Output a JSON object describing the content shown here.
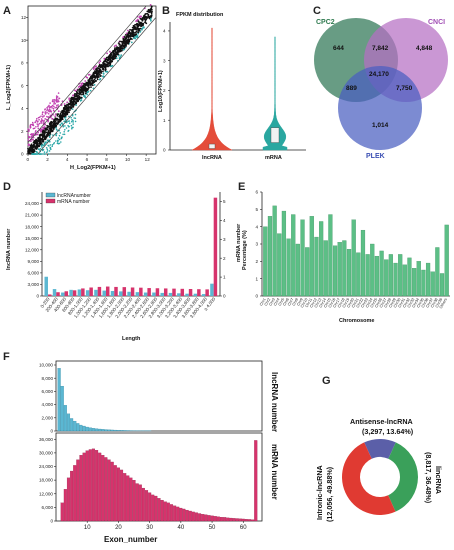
{
  "panels": {
    "A": "A",
    "B": "B",
    "C": "C",
    "D": "D",
    "E": "E",
    "F": "F",
    "G": "G"
  },
  "colors": {
    "scatter_main": "#111111",
    "scatter_up": "#c040b0",
    "scatter_down": "#2aa7a7",
    "lnc_violin": "#e44d3a",
    "mrna_violin": "#2aa7a0",
    "lnc_bar": "#5bb7d2",
    "mrna_bar": "#d6336c",
    "chrom_bar": "#5cbf86",
    "venn_cpc2": "#4e8b6e",
    "venn_cnci": "#b56fc4",
    "venn_plek": "#4a5ec0",
    "donut_antisense": "#5b5fa8",
    "donut_lincrna": "#3aa05a",
    "donut_intronic": "#e03a32"
  },
  "chart_data": [
    {
      "panel": "A",
      "type": "scatter",
      "title": "",
      "xlabel": "H_Log2(FPKM+1)",
      "ylabel": "L_Log2(FPKM+1)",
      "xticks": [
        "0",
        "2",
        "4",
        "6",
        "8",
        "10",
        "12"
      ],
      "yticks": [
        "0",
        "2",
        "4",
        "6",
        "8",
        "10",
        "12"
      ],
      "xlim": [
        0,
        13
      ],
      "ylim": [
        0,
        13
      ]
    },
    {
      "panel": "B",
      "type": "violin",
      "title": "FPKM distribution",
      "ylabel": "Log10(FPKM+1)",
      "categories": [
        "lncRNA",
        "mRNA"
      ],
      "yticks": [
        "0",
        "1",
        "2",
        "3",
        "4"
      ],
      "ylim": [
        0,
        4.3
      ]
    },
    {
      "panel": "C",
      "type": "venn",
      "sets": [
        "CPC2",
        "CNCI",
        "PLEK"
      ],
      "regions": {
        "CPC2_only": "644",
        "CNCI_only": "4,848",
        "PLEK_only": "1,014",
        "CPC2_CNCI": "7,842",
        "CPC2_PLEK": "889",
        "CNCI_PLEK": "7,750",
        "all": "24,170"
      }
    },
    {
      "panel": "D",
      "type": "bar",
      "xlabel": "Length",
      "ylabel_left": "lncRNA number",
      "ylabel_right": "mRNA number",
      "legend": [
        "lncRNAnumber",
        "mRNA number"
      ],
      "categories": [
        "0-200",
        "200-400",
        "400-600",
        "600-800",
        "800-1,000",
        "1,000-1,200",
        "1,200-1,400",
        "1,400-1,600",
        "1,600-1,800",
        "1,800-2,000",
        "2,000-2,200",
        "2,200-2,400",
        "2,400-2,600",
        "2,600-2,800",
        "2,800-3,000",
        "3,000-3,200",
        "3,200-3,400",
        "3,400-3,600",
        "3,600-3,800",
        "3,800-4,000",
        "≥ 4,000"
      ],
      "lnc_values": [
        5000,
        1800,
        900,
        1600,
        1700,
        1500,
        1600,
        1400,
        1300,
        1200,
        1100,
        1000,
        900,
        900,
        800,
        800,
        700,
        600,
        600,
        500,
        3200
      ],
      "mrna_values": [
        80,
        200,
        250,
        300,
        400,
        450,
        480,
        500,
        480,
        470,
        450,
        440,
        420,
        410,
        400,
        390,
        380,
        370,
        360,
        350,
        5200
      ],
      "ylim_left": [
        0,
        27000
      ],
      "ylim_right": [
        0,
        5500
      ],
      "yticks_left": [
        "0",
        "3,000",
        "6,000",
        "9,000",
        "12,000",
        "15,000",
        "18,000",
        "21,000",
        "24,000"
      ],
      "yticks_right": [
        "0",
        "1",
        "2",
        "3",
        "4",
        "5"
      ]
    },
    {
      "panel": "E",
      "type": "bar",
      "xlabel": "Chromosome",
      "ylabel": "Percentage (%)",
      "categories": [
        "Chr1",
        "Chr2",
        "Chr3",
        "Chr4",
        "Chr5",
        "Chr6",
        "Chr7",
        "Chr8",
        "Chr9",
        "Chr10",
        "Chr11",
        "Chr12",
        "Chr13",
        "Chr14",
        "Chr15",
        "Chr16",
        "Chr17",
        "Chr18",
        "Chr19",
        "Chr20",
        "Chr21",
        "Chr22",
        "Chr23",
        "Chr24",
        "Chr25",
        "Chr26",
        "Chr27",
        "Chr28",
        "Chr29",
        "Chr30",
        "Chr31",
        "Chr32",
        "Chr33",
        "Chr34",
        "Chr35",
        "Chr36",
        "Chr37",
        "Chr38",
        "Chr39",
        "Others"
      ],
      "values": [
        4.0,
        4.6,
        5.2,
        3.6,
        4.9,
        3.3,
        4.7,
        3.0,
        4.4,
        2.8,
        4.6,
        3.4,
        4.3,
        3.2,
        4.7,
        2.9,
        3.1,
        3.2,
        2.7,
        4.4,
        2.5,
        3.8,
        2.4,
        3.0,
        2.3,
        2.6,
        2.1,
        2.4,
        1.9,
        2.4,
        1.8,
        2.2,
        1.6,
        2.0,
        1.5,
        1.9,
        1.4,
        2.8,
        1.3,
        4.1
      ],
      "ylim": [
        0,
        6
      ],
      "yticks": [
        "0",
        "1",
        "2",
        "3",
        "4",
        "5",
        "6"
      ]
    },
    {
      "panel": "F-top",
      "type": "bar",
      "ylabel": "lncRNA number",
      "ylim": [
        0,
        10000
      ],
      "yticks": [
        "0",
        "2,000",
        "4,000",
        "6,000",
        "8,000",
        "10,000"
      ],
      "x": [
        1,
        2,
        3,
        4,
        5,
        6,
        7,
        8,
        9,
        10,
        11,
        12,
        13,
        14,
        15,
        16,
        17,
        18,
        19,
        20,
        21,
        22,
        23,
        24,
        25,
        26,
        27,
        28,
        29,
        30
      ],
      "values": [
        9500,
        6800,
        3900,
        2600,
        1900,
        1500,
        1150,
        900,
        750,
        600,
        500,
        420,
        360,
        300,
        260,
        220,
        190,
        160,
        140,
        120,
        100,
        90,
        80,
        70,
        60,
        50,
        45,
        40,
        35,
        30
      ]
    },
    {
      "panel": "F-bottom",
      "type": "bar",
      "xlabel": "Exon_number",
      "ylabel": "mRNA number",
      "ylim": [
        0,
        37000
      ],
      "yticks": [
        "0",
        "6,000",
        "12,000",
        "18,000",
        "24,000",
        "30,000",
        "36,000"
      ],
      "xticks": [
        "10",
        "20",
        "30",
        "40",
        "50",
        "60"
      ],
      "x": [
        2,
        3,
        4,
        5,
        6,
        7,
        8,
        9,
        10,
        11,
        12,
        13,
        14,
        15,
        16,
        17,
        18,
        19,
        20,
        21,
        22,
        23,
        24,
        25,
        26,
        27,
        28,
        29,
        30,
        31,
        32,
        33,
        34,
        35,
        36,
        37,
        38,
        39,
        40,
        41,
        42,
        43,
        44,
        45,
        46,
        47,
        48,
        49,
        50,
        51,
        52,
        53,
        54,
        55,
        56,
        57,
        58,
        59,
        60,
        61,
        62,
        63,
        64
      ],
      "values": [
        8000,
        14000,
        19000,
        22000,
        24500,
        27000,
        29000,
        30000,
        31000,
        31500,
        31800,
        31200,
        30000,
        29000,
        28000,
        27000,
        26000,
        24500,
        23500,
        22500,
        21000,
        20000,
        19000,
        18000,
        16500,
        16000,
        14500,
        13500,
        12500,
        11500,
        11000,
        10000,
        9200,
        8500,
        8000,
        7300,
        6700,
        6200,
        5700,
        5300,
        4800,
        4400,
        4000,
        3700,
        3300,
        3000,
        2800,
        2500,
        2300,
        2100,
        1900,
        1700,
        1600,
        1400,
        1300,
        1200,
        1100,
        1000,
        900,
        800,
        700,
        600,
        35500
      ],
      "xlim": [
        0,
        66
      ]
    },
    {
      "panel": "G",
      "type": "pie",
      "labels": [
        "Antisense-lncRNA",
        "lincRNA",
        "Intronic-lncRNA"
      ],
      "label_lines": [
        [
          "Antisense-lncRNA",
          "(3,297, 13.64%)"
        ],
        [
          "lincRNA",
          "(8,817, 36.48%)"
        ],
        [
          "Intronic-lncRNA",
          "(12,056, 49.88%)"
        ]
      ],
      "counts": [
        3297,
        8817,
        12056
      ],
      "percent": [
        13.64,
        36.48,
        49.88
      ]
    }
  ]
}
